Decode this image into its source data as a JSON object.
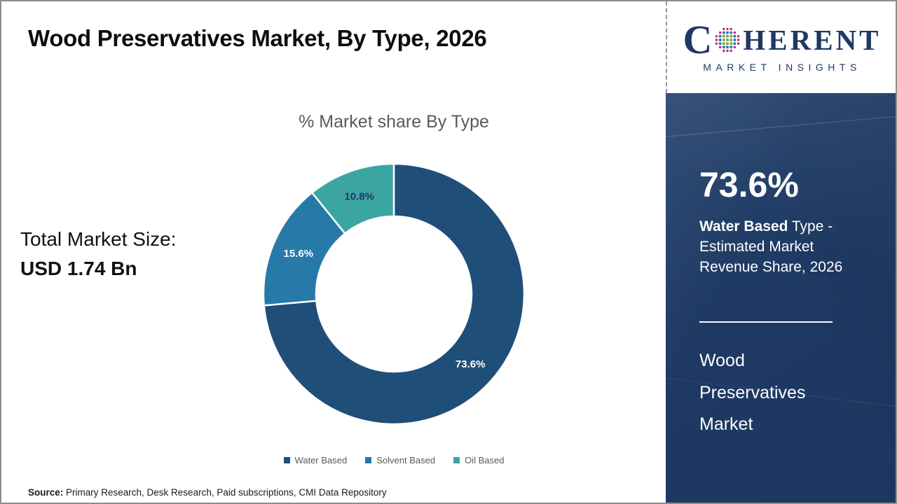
{
  "header": {
    "title": "Wood Preservatives Market, By Type, 2026"
  },
  "logo": {
    "brand_first_letter": "C",
    "brand_rest": "HERENT",
    "subtitle": "MARKET INSIGHTS",
    "globe_icon": "dot-globe-icon",
    "brand_color": "#1F3864",
    "globe_colors": {
      "inner": "#70AD47",
      "mid": "#2E75B6",
      "outer": "#C0266C"
    }
  },
  "chart_data": {
    "type": "pie",
    "subtype": "donut",
    "title": "% Market share By Type",
    "categories": [
      "Water Based",
      "Solvent Based",
      "Oil Based"
    ],
    "values": [
      73.6,
      15.6,
      10.8
    ],
    "value_labels": [
      "73.6%",
      "15.6%",
      "10.8%"
    ],
    "colors": [
      "#1F4E79",
      "#2779A7",
      "#3BA5A2"
    ],
    "label_colors": [
      "#FFFFFF",
      "#FFFFFF",
      "#1F3864"
    ],
    "start_angle_deg": 0,
    "direction": "clockwise",
    "legend_position": "bottom"
  },
  "left_panel": {
    "total_label": "Total Market Size:",
    "total_value": "USD 1.74 Bn"
  },
  "sidebar": {
    "background_color": "#1E3A63",
    "stat_value": "73.6%",
    "stat_label_bold": "Water Based",
    "stat_label_rest": " Type - Estimated Market Revenue Share, 2026",
    "market_name_lines": [
      "Wood",
      "Preservatives",
      "Market"
    ]
  },
  "footer": {
    "source_label": "Source:",
    "source_text": " Primary Research, Desk Research, Paid subscriptions, CMI Data Repository"
  }
}
